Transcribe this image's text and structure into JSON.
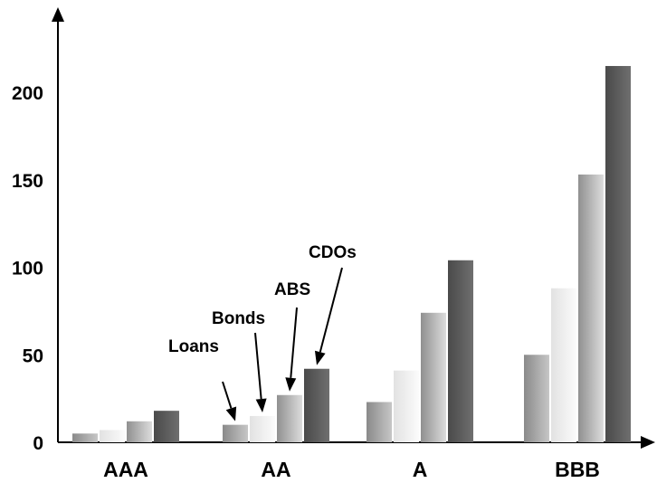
{
  "chart_data": {
    "type": "bar",
    "title": "",
    "xlabel": "",
    "ylabel": "",
    "categories": [
      "AAA",
      "AA",
      "A",
      "BBB"
    ],
    "series": [
      {
        "values": [
          5,
          10,
          23,
          50
        ]
      },
      {
        "values": [
          7,
          15,
          41,
          88
        ]
      },
      {
        "values": [
          12,
          27,
          74,
          153
        ]
      },
      {
        "values": [
          18,
          42,
          104,
          215
        ]
      }
    ],
    "ylim": [
      0,
      230
    ],
    "yticks": [
      0,
      50,
      100,
      150,
      200
    ],
    "grid": false,
    "legend": "none",
    "series_colors": [
      [
        "#8a8a8a",
        "#c6c6c6"
      ],
      [
        "#e2e2e2",
        "#fbfbfb"
      ],
      [
        "#909090",
        "#dcdcdc"
      ],
      [
        "#4a4a4a",
        "#6f6f6f"
      ]
    ],
    "annotations": [
      {
        "text": "Loans",
        "category": "AA",
        "series_index": 0
      },
      {
        "text": "Bonds",
        "category": "AA",
        "series_index": 1
      },
      {
        "text": "ABS",
        "category": "AA",
        "series_index": 2
      },
      {
        "text": "CDOs",
        "category": "AA",
        "series_index": 3
      }
    ]
  }
}
